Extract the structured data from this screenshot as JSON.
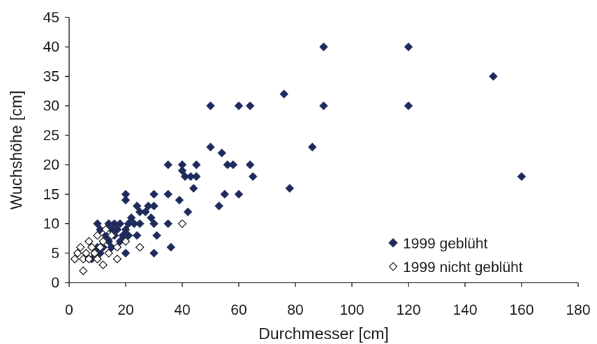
{
  "chart_data": {
    "type": "scatter",
    "title": "",
    "xlabel": "Durchmesser  [cm]",
    "ylabel": "Wuchshöhe  [cm]",
    "xlim": [
      0,
      180
    ],
    "ylim": [
      0,
      45
    ],
    "xticks": [
      0,
      20,
      40,
      60,
      80,
      100,
      120,
      140,
      160,
      180
    ],
    "yticks": [
      0,
      5,
      10,
      15,
      20,
      25,
      30,
      35,
      40,
      45
    ],
    "xtick_labels": [
      "0",
      "20",
      "40",
      "60",
      "80",
      "100",
      "120",
      "140",
      "160",
      "180"
    ],
    "ytick_labels": [
      "0",
      "5",
      "10",
      "15",
      "20",
      "25",
      "30",
      "35",
      "40",
      "45"
    ],
    "grid": false,
    "legend_position": "lower-right",
    "series": [
      {
        "name": "1999 geblüht",
        "marker": "filled-diamond",
        "color": "#1f2a5c",
        "points": [
          [
            90,
            40
          ],
          [
            120,
            40
          ],
          [
            150,
            35
          ],
          [
            76,
            32
          ],
          [
            50,
            30
          ],
          [
            60,
            30
          ],
          [
            64,
            30
          ],
          [
            90,
            30
          ],
          [
            120,
            30
          ],
          [
            50,
            23
          ],
          [
            86,
            23
          ],
          [
            54,
            22
          ],
          [
            35,
            20
          ],
          [
            40,
            20
          ],
          [
            45,
            20
          ],
          [
            56,
            20
          ],
          [
            58,
            20
          ],
          [
            64,
            20
          ],
          [
            40,
            19
          ],
          [
            41,
            18
          ],
          [
            43,
            18
          ],
          [
            45,
            18
          ],
          [
            65,
            18
          ],
          [
            160,
            18
          ],
          [
            44,
            16
          ],
          [
            78,
            16
          ],
          [
            20,
            15
          ],
          [
            30,
            15
          ],
          [
            35,
            15
          ],
          [
            55,
            15
          ],
          [
            60,
            15
          ],
          [
            20,
            14
          ],
          [
            39,
            14
          ],
          [
            24,
            13
          ],
          [
            28,
            13
          ],
          [
            30,
            13
          ],
          [
            53,
            13
          ],
          [
            25,
            12
          ],
          [
            27,
            12
          ],
          [
            42,
            12
          ],
          [
            22,
            11
          ],
          [
            29,
            11
          ],
          [
            10,
            10
          ],
          [
            14,
            10
          ],
          [
            16,
            10
          ],
          [
            18,
            10
          ],
          [
            21,
            10
          ],
          [
            23,
            10
          ],
          [
            25,
            10
          ],
          [
            30,
            10
          ],
          [
            35,
            10
          ],
          [
            11,
            9
          ],
          [
            15,
            9
          ],
          [
            17,
            9
          ],
          [
            20,
            9
          ],
          [
            10,
            8
          ],
          [
            13,
            8
          ],
          [
            16,
            8
          ],
          [
            19,
            8
          ],
          [
            21,
            8
          ],
          [
            24,
            8
          ],
          [
            31,
            8
          ],
          [
            12,
            7
          ],
          [
            14,
            7
          ],
          [
            18,
            7
          ],
          [
            20,
            7
          ],
          [
            8,
            6
          ],
          [
            10,
            6
          ],
          [
            12,
            6
          ],
          [
            15,
            6
          ],
          [
            17,
            6
          ],
          [
            36,
            6
          ],
          [
            9,
            5
          ],
          [
            11,
            5
          ],
          [
            14,
            5
          ],
          [
            20,
            5
          ],
          [
            30,
            5
          ],
          [
            8,
            4
          ],
          [
            10,
            4
          ]
        ]
      },
      {
        "name": "1999 nicht geblüht",
        "marker": "open-diamond",
        "color": "#1a1a1a",
        "points": [
          [
            40,
            10
          ],
          [
            13,
            9
          ],
          [
            10,
            8
          ],
          [
            15,
            8
          ],
          [
            7,
            7
          ],
          [
            12,
            7
          ],
          [
            20,
            7
          ],
          [
            4,
            6
          ],
          [
            8,
            6
          ],
          [
            11,
            6
          ],
          [
            17,
            6
          ],
          [
            25,
            6
          ],
          [
            3,
            5
          ],
          [
            6,
            5
          ],
          [
            9,
            5
          ],
          [
            14,
            5
          ],
          [
            2,
            4
          ],
          [
            5,
            4
          ],
          [
            7,
            4
          ],
          [
            10,
            4
          ],
          [
            17,
            4
          ],
          [
            12,
            3
          ],
          [
            5,
            2
          ]
        ]
      }
    ]
  }
}
